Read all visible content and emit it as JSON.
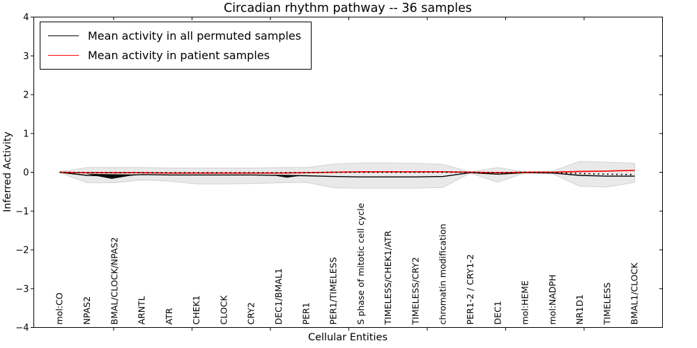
{
  "figure": {
    "title": "Circadian rhythm pathway -- 36 samples",
    "xlabel": "Cellular Entities",
    "ylabel": "Inferred Activity",
    "background_color": "#ffffff"
  },
  "legend": {
    "position": "upper left",
    "entries": [
      {
        "label": "Mean activity in all permuted samples",
        "color": "#000000"
      },
      {
        "label": "Mean activity in patient samples",
        "color": "#ff0000"
      }
    ]
  },
  "chart_data": {
    "type": "line",
    "title": "Circadian rhythm pathway -- 36 samples",
    "xlabel": "Cellular Entities",
    "ylabel": "Inferred Activity",
    "ylim": [
      -4,
      4
    ],
    "ytick_values": [
      4,
      3,
      2,
      1,
      0,
      -1,
      -2,
      -3,
      -4
    ],
    "ytick_labels": [
      "4",
      "3",
      "2",
      "1",
      "0",
      "−1",
      "−2",
      "−3",
      "−4"
    ],
    "grid": false,
    "legend_position": "upper left",
    "categories": [
      "mol:CO",
      "NPAS2",
      "BMAL/CLOCK/NPAS2",
      "ARNTL",
      "ATR",
      "CHEK1",
      "CLOCK",
      "CRY2",
      "DEC1/BMAL1",
      "PER1",
      "PER1/TIMELESS",
      "S phase of mitotic cell cycle",
      "TIMELESS/CHEK1/ATR",
      "TIMELESS/CRY2",
      "chromatin modification",
      "PER1-2 / CRY1-2",
      "DEC1",
      "mol:HEME",
      "mol:NADPH",
      "NR1D1",
      "TIMELESS",
      "BMAL1/CLOCK"
    ],
    "series": [
      {
        "name": "Mean activity in all permuted samples",
        "color": "#000000",
        "line_style": "solid",
        "values": [
          0.0,
          -0.08,
          -0.1,
          -0.06,
          -0.07,
          -0.07,
          -0.07,
          -0.07,
          -0.08,
          -0.09,
          -0.11,
          -0.12,
          -0.12,
          -0.12,
          -0.11,
          -0.01,
          -0.05,
          -0.01,
          -0.02,
          -0.08,
          -0.1,
          -0.1
        ]
      },
      {
        "name": "Mean activity in patient samples",
        "color": "#ff0000",
        "line_style": "solid",
        "values": [
          0.0,
          -0.01,
          -0.01,
          -0.01,
          -0.02,
          -0.02,
          -0.02,
          -0.02,
          -0.02,
          -0.01,
          0.0,
          0.01,
          0.01,
          0.01,
          0.01,
          0.0,
          -0.01,
          0.0,
          0.0,
          0.02,
          0.03,
          0.05
        ]
      },
      {
        "name": "zero reference",
        "color": "#000000",
        "line_style": "dotted",
        "values": [
          0.0,
          -0.01,
          -0.01,
          -0.01,
          -0.01,
          -0.01,
          -0.01,
          -0.01,
          -0.01,
          -0.01,
          0.0,
          0.0,
          0.0,
          0.0,
          0.0,
          0.0,
          -0.01,
          0.0,
          -0.01,
          -0.03,
          -0.05,
          -0.06
        ]
      }
    ],
    "bands": [
      {
        "name": "permuted samples activity range",
        "fill": "#e9e9e9",
        "edge": "#d2d2d2",
        "upper": [
          0.01,
          0.12,
          0.12,
          0.12,
          0.11,
          0.11,
          0.11,
          0.11,
          0.12,
          0.12,
          0.21,
          0.24,
          0.24,
          0.23,
          0.2,
          0.01,
          0.12,
          0.01,
          0.03,
          0.28,
          0.26,
          0.23
        ],
        "lower": [
          -0.01,
          -0.27,
          -0.27,
          -0.2,
          -0.23,
          -0.3,
          -0.3,
          -0.29,
          -0.27,
          -0.26,
          -0.4,
          -0.41,
          -0.41,
          -0.41,
          -0.39,
          -0.02,
          -0.26,
          -0.01,
          -0.04,
          -0.36,
          -0.38,
          -0.26
        ]
      },
      {
        "name": "dense permuted cluster left",
        "fill": "#141414",
        "edge": "none",
        "x": [
          0.95,
          1.9,
          2.85
        ],
        "upper": [
          -0.04,
          -0.05,
          -0.06
        ],
        "lower": [
          -0.04,
          -0.17,
          -0.06
        ]
      },
      {
        "name": "dense permuted cluster mid",
        "fill": "#141414",
        "edge": "none",
        "x": [
          7.7,
          8.3,
          8.9
        ],
        "upper": [
          -0.07,
          -0.07,
          -0.08
        ],
        "lower": [
          -0.07,
          -0.14,
          -0.08
        ]
      }
    ]
  }
}
